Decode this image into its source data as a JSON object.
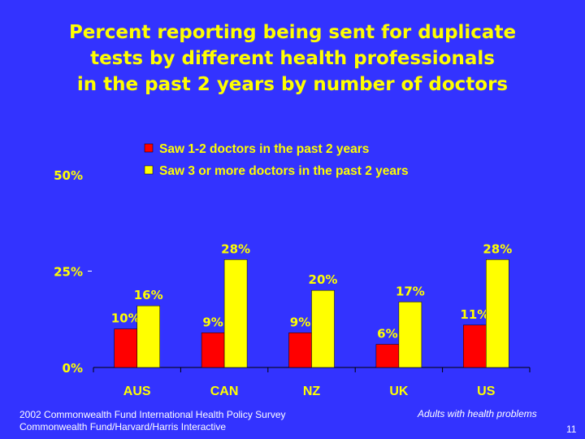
{
  "title_lines": [
    "Percent reporting being sent for duplicate",
    "tests by different health professionals",
    "in the past 2 years by number of doctors"
  ],
  "chart_data": {
    "type": "bar",
    "categories": [
      "AUS",
      "CAN",
      "NZ",
      "UK",
      "US"
    ],
    "series": [
      {
        "name": "Saw 1-2 doctors in the past 2 years",
        "values": [
          10,
          9,
          9,
          6,
          11
        ],
        "labels": [
          "10%",
          "9%",
          "9%",
          "6%",
          "11%"
        ],
        "color": "#ff0000"
      },
      {
        "name": "Saw 3 or more doctors in the past 2 years",
        "values": [
          16,
          28,
          20,
          17,
          28
        ],
        "labels": [
          "16%",
          "28%",
          "20%",
          "17%",
          "28%"
        ],
        "color": "#ffff00"
      }
    ],
    "ylim": [
      0,
      50
    ],
    "y_ticks": [
      {
        "value": 0,
        "label": "0%"
      },
      {
        "value": 25,
        "label": "25%"
      },
      {
        "value": 50,
        "label": "50%"
      }
    ],
    "legend_position": "top",
    "grid": false
  },
  "footer": {
    "source_lines": [
      "2002 Commonwealth Fund International Health Policy Survey",
      "Commonwealth Fund/Harvard/Harris Interactive"
    ],
    "note": "Adults with health problems",
    "page_number": "11"
  }
}
